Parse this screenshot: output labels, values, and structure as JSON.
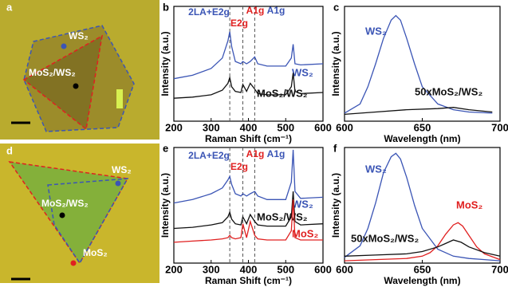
{
  "panels": [
    {
      "label": "a",
      "labels": [
        "WS₂",
        "MoS₂/WS₂"
      ]
    },
    {
      "label": "d",
      "labels": [
        "WS₂",
        "MoS₂/WS₂",
        "MoS₂"
      ]
    }
  ],
  "chart_data": [
    {
      "type": "line",
      "panel": "b",
      "xlabel": "Raman Shift (cm⁻¹)",
      "ylabel": "Intensity (a.u.)",
      "xlim": [
        200,
        600
      ],
      "xticks": [
        200,
        300,
        400,
        500,
        600
      ],
      "ylim": [
        0,
        1
      ],
      "vlines": [
        350,
        385,
        417
      ],
      "annotations": [
        {
          "text": "2LA+E2g",
          "color": "#3b55b5"
        },
        {
          "text": "E2g",
          "color": "#e02020"
        },
        {
          "text": "A1g",
          "color": "#e02020"
        },
        {
          "text": "A1g",
          "color": "#3b55b5"
        }
      ],
      "series": [
        {
          "name": "WS₂",
          "color": "#3b55b5",
          "x": [
            200,
            250,
            300,
            330,
            345,
            350,
            355,
            365,
            380,
            385,
            395,
            405,
            417,
            425,
            450,
            500,
            515,
            520,
            525,
            540,
            600
          ],
          "values": [
            0.37,
            0.4,
            0.46,
            0.55,
            0.7,
            0.78,
            0.65,
            0.52,
            0.5,
            0.52,
            0.5,
            0.52,
            0.56,
            0.5,
            0.48,
            0.48,
            0.55,
            0.67,
            0.5,
            0.49,
            0.5
          ]
        },
        {
          "name": "MoS₂/WS₂",
          "color": "#111111",
          "x": [
            200,
            250,
            300,
            330,
            345,
            350,
            355,
            365,
            380,
            385,
            395,
            405,
            417,
            425,
            450,
            500,
            515,
            520,
            525,
            540,
            600
          ],
          "values": [
            0.2,
            0.21,
            0.23,
            0.27,
            0.33,
            0.38,
            0.3,
            0.26,
            0.25,
            0.32,
            0.26,
            0.33,
            0.28,
            0.24,
            0.23,
            0.23,
            0.3,
            0.42,
            0.26,
            0.24,
            0.25
          ]
        }
      ]
    },
    {
      "type": "line",
      "panel": "c",
      "xlabel": "Wavelength (nm)",
      "ylabel": "Intensity (a.u.)",
      "xlim": [
        600,
        700
      ],
      "xticks": [
        600,
        650,
        700
      ],
      "ylim": [
        0,
        1
      ],
      "series": [
        {
          "name": "WS₂",
          "color": "#3b55b5",
          "x": [
            600,
            610,
            615,
            620,
            625,
            630,
            633,
            636,
            640,
            645,
            650,
            660,
            670,
            680,
            695
          ],
          "values": [
            0.07,
            0.15,
            0.3,
            0.5,
            0.72,
            0.88,
            0.92,
            0.88,
            0.72,
            0.5,
            0.3,
            0.15,
            0.1,
            0.08,
            0.07
          ]
        },
        {
          "name": "50xMoS₂/WS₂",
          "color": "#111111",
          "x": [
            600,
            620,
            640,
            660,
            670,
            680,
            695
          ],
          "values": [
            0.06,
            0.08,
            0.1,
            0.11,
            0.12,
            0.1,
            0.08
          ]
        }
      ]
    },
    {
      "type": "line",
      "panel": "e",
      "xlabel": "Raman Shift (cm⁻¹)",
      "ylabel": "Intensity (a.u.)",
      "xlim": [
        200,
        600
      ],
      "xticks": [
        200,
        300,
        400,
        500,
        600
      ],
      "ylim": [
        0,
        1
      ],
      "vlines": [
        350,
        385,
        417
      ],
      "annotations": [
        {
          "text": "2LA+E2g",
          "color": "#3b55b5"
        },
        {
          "text": "E2g",
          "color": "#e02020"
        },
        {
          "text": "A1g",
          "color": "#e02020"
        },
        {
          "text": "A1g",
          "color": "#3b55b5"
        }
      ],
      "series": [
        {
          "name": "WS₂",
          "color": "#3b55b5",
          "x": [
            200,
            250,
            300,
            330,
            345,
            350,
            355,
            365,
            380,
            385,
            395,
            405,
            417,
            425,
            450,
            500,
            515,
            520,
            525,
            540,
            600
          ],
          "values": [
            0.52,
            0.55,
            0.6,
            0.65,
            0.72,
            0.75,
            0.68,
            0.6,
            0.58,
            0.6,
            0.58,
            0.6,
            0.62,
            0.58,
            0.55,
            0.55,
            0.7,
            0.98,
            0.62,
            0.56,
            0.57
          ]
        },
        {
          "name": "MoS₂/WS₂",
          "color": "#111111",
          "x": [
            200,
            250,
            300,
            330,
            345,
            350,
            355,
            365,
            380,
            385,
            395,
            405,
            417,
            425,
            450,
            500,
            515,
            520,
            525,
            540,
            600
          ],
          "values": [
            0.3,
            0.31,
            0.33,
            0.35,
            0.4,
            0.44,
            0.38,
            0.34,
            0.33,
            0.4,
            0.34,
            0.42,
            0.36,
            0.33,
            0.32,
            0.32,
            0.4,
            0.62,
            0.36,
            0.33,
            0.34
          ]
        },
        {
          "name": "MoS₂",
          "color": "#e02020",
          "x": [
            200,
            250,
            300,
            330,
            345,
            350,
            355,
            365,
            380,
            385,
            395,
            405,
            417,
            425,
            450,
            500,
            515,
            520,
            525,
            540,
            600
          ],
          "values": [
            0.18,
            0.19,
            0.2,
            0.21,
            0.22,
            0.24,
            0.22,
            0.21,
            0.22,
            0.34,
            0.22,
            0.36,
            0.24,
            0.21,
            0.2,
            0.2,
            0.28,
            0.55,
            0.22,
            0.2,
            0.2
          ]
        }
      ]
    },
    {
      "type": "line",
      "panel": "f",
      "xlabel": "Wavelength (nm)",
      "ylabel": "Intensity (a.u.)",
      "xlim": [
        600,
        700
      ],
      "xticks": [
        600,
        650,
        700
      ],
      "ylim": [
        0,
        1
      ],
      "series": [
        {
          "name": "WS₂",
          "color": "#3b55b5",
          "x": [
            600,
            610,
            615,
            620,
            625,
            630,
            633,
            636,
            640,
            645,
            650,
            660,
            670,
            680,
            690,
            700
          ],
          "values": [
            0.05,
            0.15,
            0.3,
            0.52,
            0.78,
            0.92,
            0.95,
            0.9,
            0.74,
            0.5,
            0.3,
            0.12,
            0.06,
            0.04,
            0.03,
            0.02
          ]
        },
        {
          "name": "MoS₂",
          "color": "#e02020",
          "x": [
            600,
            620,
            640,
            650,
            655,
            660,
            665,
            670,
            673,
            676,
            680,
            685,
            690,
            700
          ],
          "values": [
            0.02,
            0.03,
            0.04,
            0.06,
            0.09,
            0.15,
            0.25,
            0.33,
            0.35,
            0.32,
            0.24,
            0.14,
            0.08,
            0.03
          ]
        },
        {
          "name": "50xMoS₂/WS₂",
          "color": "#111111",
          "x": [
            600,
            620,
            640,
            650,
            660,
            665,
            670,
            675,
            680,
            690,
            700
          ],
          "values": [
            0.06,
            0.07,
            0.08,
            0.1,
            0.14,
            0.17,
            0.2,
            0.18,
            0.14,
            0.09,
            0.06
          ]
        }
      ]
    }
  ]
}
